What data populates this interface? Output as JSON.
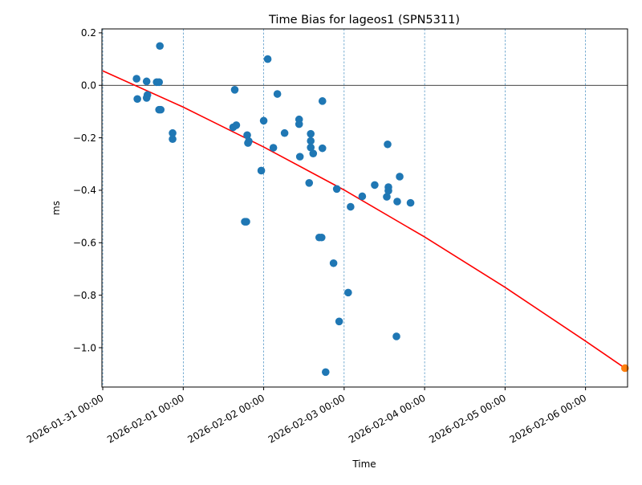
{
  "chart_data": {
    "type": "scatter",
    "title": "Time Bias for lageos1 (SPN5311)",
    "xlabel": "Time",
    "ylabel": "ms",
    "x_range": [
      "2026-01-30 23:45",
      "2026-02-06 12:32"
    ],
    "ylim": [
      -1.15,
      0.215
    ],
    "x_ticks": [
      "2026-01-31 00:00",
      "2026-02-01 00:00",
      "2026-02-02 00:00",
      "2026-02-03 00:00",
      "2026-02-04 00:00",
      "2026-02-05 00:00",
      "2026-02-06 00:00"
    ],
    "y_ticks": [
      "−1.0",
      "−0.8",
      "−0.6",
      "−0.4",
      "−0.2",
      "0.0",
      "0.2"
    ],
    "y_tick_values": [
      -1.0,
      -0.8,
      -0.6,
      -0.4,
      -0.2,
      0.0,
      0.2
    ],
    "vertical_gridlines": "dashed at each day",
    "zero_line": true,
    "colors": {
      "points": "#1f77b4",
      "fit": "#ff0000",
      "predicted": "#ff7f0e",
      "grid": "#1f77b4"
    },
    "series": [
      {
        "type": "scatter",
        "points": [
          {
            "x": "2026-01-31 10:05",
            "y": 0.025
          },
          {
            "x": "2026-01-31 10:19",
            "y": -0.052
          },
          {
            "x": "2026-01-31 13:05",
            "y": 0.015
          },
          {
            "x": "2026-01-31 13:19",
            "y": -0.037
          },
          {
            "x": "2026-01-31 13:05",
            "y": -0.048
          },
          {
            "x": "2026-01-31 16:05",
            "y": 0.012
          },
          {
            "x": "2026-01-31 16:48",
            "y": 0.012
          },
          {
            "x": "2026-01-31 16:48",
            "y": -0.093
          },
          {
            "x": "2026-01-31 17:17",
            "y": -0.093
          },
          {
            "x": "2026-01-31 17:02",
            "y": 0.15
          },
          {
            "x": "2026-01-31 20:50",
            "y": -0.182
          },
          {
            "x": "2026-01-31 20:50",
            "y": -0.205
          },
          {
            "x": "2026-02-01 14:53",
            "y": -0.16
          },
          {
            "x": "2026-02-01 15:22",
            "y": -0.017
          },
          {
            "x": "2026-02-01 15:50",
            "y": -0.152
          },
          {
            "x": "2026-02-01 18:22",
            "y": -0.52
          },
          {
            "x": "2026-02-01 18:50",
            "y": -0.52
          },
          {
            "x": "2026-02-01 19:05",
            "y": -0.19
          },
          {
            "x": "2026-02-01 19:19",
            "y": -0.22
          },
          {
            "x": "2026-02-01 19:34",
            "y": -0.213
          },
          {
            "x": "2026-02-01 23:17",
            "y": -0.325
          },
          {
            "x": "2026-02-02 00:00",
            "y": -0.135
          },
          {
            "x": "2026-02-02 01:12",
            "y": 0.1
          },
          {
            "x": "2026-02-02 02:53",
            "y": -0.238
          },
          {
            "x": "2026-02-02 04:05",
            "y": -0.033
          },
          {
            "x": "2026-02-02 06:14",
            "y": -0.182
          },
          {
            "x": "2026-02-02 10:34",
            "y": -0.13
          },
          {
            "x": "2026-02-02 10:34",
            "y": -0.148
          },
          {
            "x": "2026-02-02 10:48",
            "y": -0.272
          },
          {
            "x": "2026-02-02 13:34",
            "y": -0.372
          },
          {
            "x": "2026-02-02 14:02",
            "y": -0.185
          },
          {
            "x": "2026-02-02 14:02",
            "y": -0.212
          },
          {
            "x": "2026-02-02 14:02",
            "y": -0.237
          },
          {
            "x": "2026-02-02 14:46",
            "y": -0.26
          },
          {
            "x": "2026-02-02 16:34",
            "y": -0.58
          },
          {
            "x": "2026-02-02 17:17",
            "y": -0.58
          },
          {
            "x": "2026-02-02 17:31",
            "y": -0.06
          },
          {
            "x": "2026-02-02 17:31",
            "y": -0.24
          },
          {
            "x": "2026-02-02 18:29",
            "y": -1.093
          },
          {
            "x": "2026-02-02 20:50",
            "y": -0.678
          },
          {
            "x": "2026-02-02 21:48",
            "y": -0.395
          },
          {
            "x": "2026-02-02 22:31",
            "y": -0.9
          },
          {
            "x": "2026-02-03 01:12",
            "y": -0.79
          },
          {
            "x": "2026-02-03 01:55",
            "y": -0.463
          },
          {
            "x": "2026-02-03 05:24",
            "y": -0.423
          },
          {
            "x": "2026-02-03 09:07",
            "y": -0.38
          },
          {
            "x": "2026-02-03 12:43",
            "y": -0.425
          },
          {
            "x": "2026-02-03 12:58",
            "y": -0.225
          },
          {
            "x": "2026-02-03 13:12",
            "y": -0.388
          },
          {
            "x": "2026-02-03 13:12",
            "y": -0.402
          },
          {
            "x": "2026-02-03 15:36",
            "y": -0.957
          },
          {
            "x": "2026-02-03 15:50",
            "y": -0.443
          },
          {
            "x": "2026-02-03 16:34",
            "y": -0.348
          },
          {
            "x": "2026-02-03 19:48",
            "y": -0.448
          }
        ]
      },
      {
        "type": "line",
        "points": [
          {
            "x": "2026-01-31 00:00",
            "y": 0.055
          },
          {
            "x": "2026-02-01 00:00",
            "y": -0.083
          },
          {
            "x": "2026-02-02 00:00",
            "y": -0.235
          },
          {
            "x": "2026-02-03 00:00",
            "y": -0.399
          },
          {
            "x": "2026-02-04 00:00",
            "y": -0.578
          },
          {
            "x": "2026-02-05 00:00",
            "y": -0.77
          },
          {
            "x": "2026-02-06 00:00",
            "y": -0.975
          },
          {
            "x": "2026-02-06 11:46",
            "y": -1.078
          }
        ]
      },
      {
        "type": "scatter",
        "points": [
          {
            "x": "2026-02-06 11:46",
            "y": -1.078
          }
        ]
      }
    ]
  }
}
